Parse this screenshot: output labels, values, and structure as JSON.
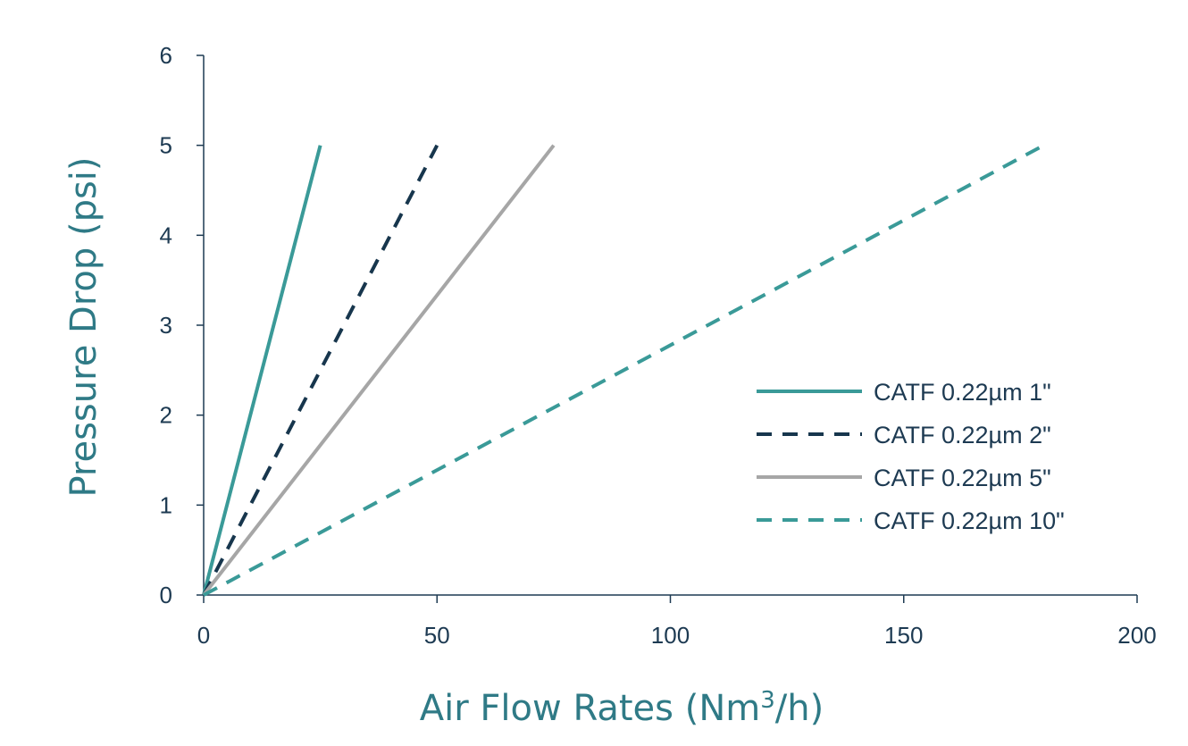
{
  "chart_data": {
    "type": "line",
    "xlabel": "Air Flow Rates (Nm",
    "xlabel_superscript": "3",
    "xlabel_suffix": "/h)",
    "ylabel": "Pressure Drop (psi)",
    "xlim": [
      0,
      200
    ],
    "ylim": [
      0,
      6
    ],
    "x_ticks": [
      "0",
      "50",
      "100",
      "150",
      "200"
    ],
    "y_ticks": [
      "0",
      "1",
      "2",
      "3",
      "4",
      "5",
      "6"
    ],
    "grid": false,
    "legend_position": "center-right",
    "series": [
      {
        "name": "CATF 0.22µm 1\"",
        "x": [
          0,
          25
        ],
        "y": [
          0,
          5
        ],
        "color": "#3a9a98",
        "style": "solid"
      },
      {
        "name": "CATF 0.22µm 2\"",
        "x": [
          0,
          50
        ],
        "y": [
          0,
          5
        ],
        "color": "#17364d",
        "style": "dashed"
      },
      {
        "name": "CATF 0.22µm 5\"",
        "x": [
          0,
          75
        ],
        "y": [
          0,
          5
        ],
        "color": "#a6a6a6",
        "style": "solid"
      },
      {
        "name": "CATF 0.22µm 10\"",
        "x": [
          0,
          180
        ],
        "y": [
          0,
          5
        ],
        "color": "#3a9a98",
        "style": "dashed"
      }
    ]
  }
}
